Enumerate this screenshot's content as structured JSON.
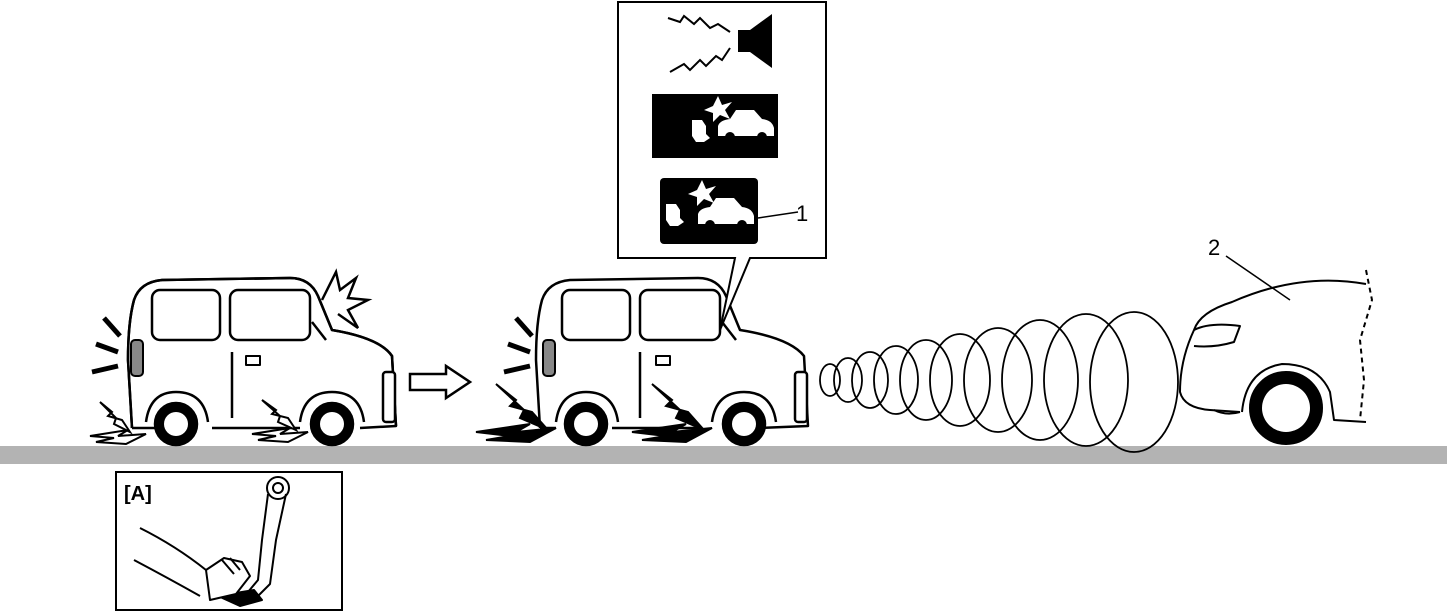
{
  "callouts": {
    "item_1": "1",
    "item_2": "2",
    "inset_a": "[A]"
  },
  "icons": {
    "buzzer": "buzzer-speaker-icon",
    "collision_warning_large": "collision-warning-indicator-icon",
    "collision_warning_small": "collision-warning-lamp-icon",
    "sequence_arrow": "right-arrow-icon",
    "radar_waves": "radar-wave-icon",
    "brake_pedal": "brake-pedal-icon"
  },
  "colors": {
    "line": "#000000",
    "road": "#b3b3b3",
    "background": "#ffffff"
  }
}
